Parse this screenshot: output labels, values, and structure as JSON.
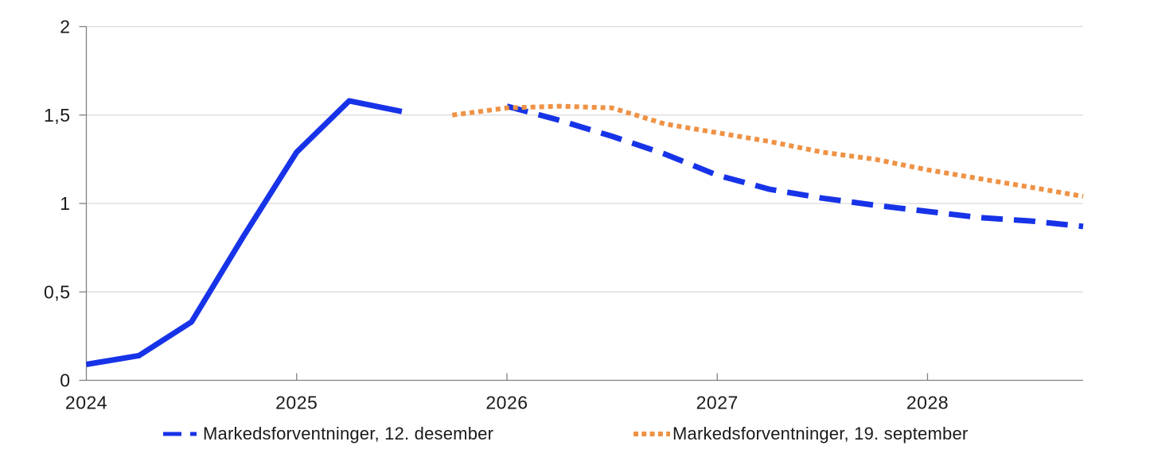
{
  "chart_data": {
    "type": "line",
    "title": "",
    "xlabel": "",
    "ylabel": "",
    "xlim": [
      2024,
      2028.74
    ],
    "ylim": [
      0,
      2
    ],
    "grid": "horizontal",
    "legend_position": "bottom",
    "x_ticks": {
      "values": [
        2024,
        2025,
        2026,
        2027,
        2028
      ],
      "labels": [
        "2024",
        "2025",
        "2026",
        "2027",
        "2028"
      ]
    },
    "y_ticks": {
      "values": [
        0,
        0.5,
        1,
        1.5,
        2
      ],
      "labels": [
        "0",
        "0,5",
        "1",
        "1,5",
        "2"
      ]
    },
    "colors": {
      "blue": "#1733E8",
      "orange": "#EF9245",
      "grid": "#D9D9D9",
      "axis": "#808080",
      "text": "#1A1A1A",
      "background": "#FFFFFF"
    },
    "series": [
      {
        "name": "",
        "id": "historical-line",
        "color": "#1733E8",
        "line_style": "solid",
        "in_legend": false,
        "x": [
          2024.0,
          2024.25,
          2024.5,
          2024.75,
          2025.0,
          2025.25,
          2025.5
        ],
        "values": [
          0.09,
          0.14,
          0.33,
          0.82,
          1.29,
          1.58,
          1.52
        ]
      },
      {
        "name": "Markedsforventninger, 12. desember",
        "id": "markedsforventninger-12-desember",
        "color": "#1733E8",
        "line_style": "dashed",
        "in_legend": true,
        "x": [
          2026.0,
          2026.25,
          2026.5,
          2026.75,
          2027.0,
          2027.25,
          2027.5,
          2027.75,
          2028.0,
          2028.25,
          2028.5,
          2028.74
        ],
        "values": [
          1.55,
          1.47,
          1.38,
          1.28,
          1.16,
          1.08,
          1.03,
          0.99,
          0.955,
          0.92,
          0.9,
          0.87
        ]
      },
      {
        "name": "Markedsforventninger, 19. september",
        "id": "markedsforventninger-19-september",
        "color": "#EF9245",
        "line_style": "dotted",
        "in_legend": true,
        "x": [
          2025.74,
          2026.0,
          2026.25,
          2026.5,
          2026.75,
          2027.0,
          2027.25,
          2027.5,
          2027.75,
          2028.0,
          2028.25,
          2028.5,
          2028.74
        ],
        "values": [
          1.5,
          1.54,
          1.55,
          1.54,
          1.45,
          1.4,
          1.35,
          1.29,
          1.25,
          1.19,
          1.14,
          1.09,
          1.04
        ]
      }
    ]
  },
  "legend": {
    "december_label": "Markedsforventninger, 12. desember",
    "september_label": "Markedsforventninger, 19. september"
  }
}
